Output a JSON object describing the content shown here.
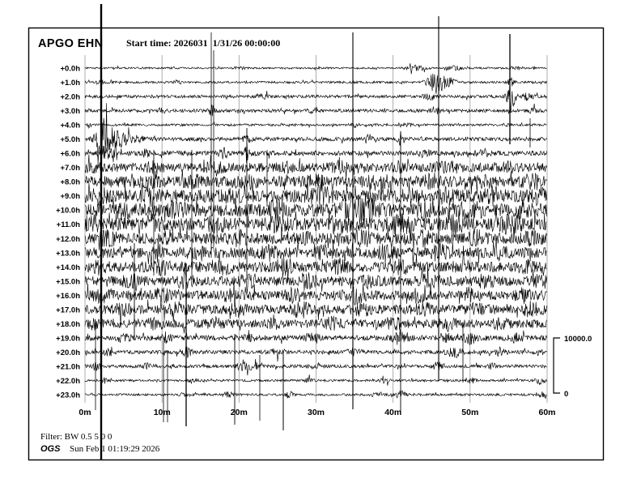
{
  "header": {
    "station": "APGO EHN",
    "start_time": "Start time: 2026031  1/31/26 00:00:00"
  },
  "footer": {
    "filter": "Filter: BW 0.5 5 0 0",
    "org": "OGS",
    "timestamp": "Sun Feb 1 01:19:29 2026"
  },
  "scale_bar": {
    "max_label": "10000.0",
    "min_label": "0"
  },
  "colors": {
    "trace": "#000000",
    "grid": "#9a9a9a",
    "background": "#ffffff"
  },
  "chart_data": {
    "type": "line",
    "title": "APGO EHN helicorder - 24 hourly seismic traces",
    "x_axis": {
      "range_minutes": [
        0,
        60
      ],
      "tick_minutes": [
        0,
        10,
        20,
        30,
        40,
        50,
        60
      ],
      "tick_labels": [
        "0m",
        "10m",
        "20m",
        "30m",
        "40m",
        "50m",
        "60m"
      ],
      "grid": "vertical gray lines every 10 minutes"
    },
    "amplitude_scale": {
      "max": 10000.0,
      "min": 0
    },
    "rows": [
      {
        "label": "+0.0h",
        "noise": 1.1,
        "bursts": [
          [
            20,
            1.5,
            0.7
          ],
          [
            43,
            3,
            1.2
          ],
          [
            48,
            2.5,
            1
          ],
          [
            56,
            2,
            0.8
          ]
        ]
      },
      {
        "label": "+1.0h",
        "noise": 1.4,
        "bursts": [
          [
            2,
            4,
            0.4
          ],
          [
            12,
            2,
            0.5
          ],
          [
            45.7,
            13,
            1.1
          ],
          [
            47.5,
            4,
            0.9
          ],
          [
            55.3,
            5,
            0.4
          ]
        ]
      },
      {
        "label": "+2.0h",
        "noise": 1.9,
        "bursts": [
          [
            23,
            2.5,
            0.8
          ],
          [
            45,
            3,
            1
          ],
          [
            55.3,
            21,
            0.5
          ],
          [
            57.5,
            4,
            0.6
          ]
        ]
      },
      {
        "label": "+3.0h",
        "noise": 2.0,
        "bursts": [
          [
            10,
            2.5,
            0.5
          ],
          [
            16.5,
            7,
            0.4
          ],
          [
            30,
            3,
            0.8
          ],
          [
            45.5,
            4,
            0.6
          ],
          [
            58,
            3,
            0.5
          ]
        ]
      },
      {
        "label": "+4.0h",
        "noise": 1.4,
        "bursts": [
          [
            0.5,
            3,
            0.3
          ],
          [
            35,
            2.5,
            0.5
          ],
          [
            42,
            2,
            0.4
          ],
          [
            55,
            2,
            0.4
          ]
        ]
      },
      {
        "label": "+5.0h",
        "noise": 2.4,
        "bursts": [
          [
            2.1,
            24,
            0.7
          ],
          [
            3.4,
            10,
            1.4
          ],
          [
            5.5,
            5,
            2
          ],
          [
            21,
            3,
            0.6
          ],
          [
            36.8,
            6,
            0.4
          ],
          [
            41,
            5,
            0.4
          ]
        ]
      },
      {
        "label": "+6.0h",
        "noise": 3.0,
        "bursts": [
          [
            2.6,
            8,
            0.6
          ],
          [
            3.9,
            11,
            0.4
          ],
          [
            8,
            6,
            0.4
          ],
          [
            18,
            5,
            0.5
          ],
          [
            21,
            13,
            0.4
          ],
          [
            44,
            4,
            0.8
          ],
          [
            52,
            3,
            1
          ]
        ]
      },
      {
        "label": "+7.0h",
        "noise": 5.5,
        "bursts": [
          [
            1,
            3,
            2
          ],
          [
            9,
            4,
            1
          ],
          [
            17,
            3,
            1.5
          ],
          [
            26,
            3,
            1
          ],
          [
            33,
            4,
            1.2
          ],
          [
            41,
            4,
            1
          ],
          [
            47,
            4,
            1.5
          ],
          [
            55,
            3,
            1
          ]
        ]
      },
      {
        "label": "+8.0h",
        "noise": 7.0,
        "bursts": [
          [
            8.5,
            5,
            1
          ],
          [
            14,
            4,
            1
          ],
          [
            21,
            4,
            1.5
          ],
          [
            30,
            5,
            1
          ],
          [
            38,
            5,
            1.5
          ],
          [
            45,
            5,
            1
          ],
          [
            52,
            4,
            1
          ],
          [
            58,
            5,
            1
          ]
        ]
      },
      {
        "label": "+9.0h",
        "noise": 8.0,
        "bursts": [
          [
            2,
            4,
            1
          ],
          [
            8.5,
            6,
            0.8
          ],
          [
            19,
            4,
            1
          ],
          [
            30.5,
            7,
            1.4
          ],
          [
            40,
            5,
            1
          ],
          [
            47,
            5,
            1.2
          ],
          [
            53,
            5,
            1
          ],
          [
            59,
            5,
            0.8
          ]
        ]
      },
      {
        "label": "+10.0h",
        "noise": 8.0,
        "bursts": [
          [
            5,
            5,
            1
          ],
          [
            12,
            5,
            1
          ],
          [
            25,
            6,
            1.5
          ],
          [
            34.8,
            13,
            1.7
          ],
          [
            36.5,
            9,
            1.4
          ],
          [
            44,
            6,
            1
          ],
          [
            50,
            6,
            1.5
          ],
          [
            57,
            6,
            1
          ]
        ]
      },
      {
        "label": "+11.0h",
        "noise": 8.0,
        "bursts": [
          [
            1,
            6,
            1
          ],
          [
            9,
            6,
            1.2
          ],
          [
            17,
            5,
            1
          ],
          [
            25,
            6,
            1
          ],
          [
            33,
            6,
            1.5
          ],
          [
            41,
            7,
            1.5
          ],
          [
            48,
            6,
            1
          ],
          [
            55,
            6,
            1.5
          ]
        ]
      },
      {
        "label": "+12.0h",
        "noise": 7.0,
        "bursts": [
          [
            3,
            5,
            1
          ],
          [
            11,
            5,
            1
          ],
          [
            20,
            5,
            1
          ],
          [
            28,
            5,
            1
          ],
          [
            36,
            6,
            1.2
          ],
          [
            44,
            5,
            1
          ],
          [
            51,
            5,
            1
          ],
          [
            58,
            5,
            1
          ]
        ]
      },
      {
        "label": "+13.0h",
        "noise": 6.5,
        "bursts": [
          [
            9.3,
            9,
            0.7
          ],
          [
            15,
            5,
            1
          ],
          [
            24,
            5,
            1
          ],
          [
            31,
            5,
            1
          ],
          [
            39,
            6,
            1
          ],
          [
            46,
            6,
            1.2
          ],
          [
            54,
            5,
            1
          ]
        ]
      },
      {
        "label": "+14.0h",
        "noise": 6.5,
        "bursts": [
          [
            2,
            5,
            1
          ],
          [
            10,
            5,
            1
          ],
          [
            18,
            5,
            1
          ],
          [
            26,
            10,
            1.1
          ],
          [
            33,
            6,
            1
          ],
          [
            41,
            5,
            1
          ],
          [
            49,
            5,
            1
          ],
          [
            57,
            5,
            1
          ]
        ]
      },
      {
        "label": "+15.0h",
        "noise": 6.0,
        "bursts": [
          [
            6,
            5,
            1
          ],
          [
            13,
            5,
            1
          ],
          [
            21,
            5,
            1
          ],
          [
            29,
            5,
            1
          ],
          [
            37,
            5,
            1
          ],
          [
            45,
            6,
            1.4
          ],
          [
            52,
            5,
            1
          ],
          [
            59,
            5,
            0.8
          ]
        ]
      },
      {
        "label": "+16.0h",
        "noise": 6.0,
        "bursts": [
          [
            2,
            5,
            1
          ],
          [
            10,
            6,
            1
          ],
          [
            19,
            5,
            1
          ],
          [
            27,
            5,
            1
          ],
          [
            35,
            6,
            1.4
          ],
          [
            43,
            5,
            1
          ],
          [
            50,
            5,
            1
          ],
          [
            57,
            5,
            1
          ]
        ]
      },
      {
        "label": "+17.0h",
        "noise": 5.8,
        "bursts": [
          [
            5,
            5,
            1
          ],
          [
            12,
            5,
            1
          ],
          [
            20,
            5,
            1
          ],
          [
            28,
            6,
            1.2
          ],
          [
            36,
            5,
            1
          ],
          [
            44,
            5,
            1
          ],
          [
            51,
            5,
            1
          ],
          [
            58,
            6,
            1
          ]
        ]
      },
      {
        "label": "+18.0h",
        "noise": 5.2,
        "bursts": [
          [
            1,
            4,
            1
          ],
          [
            9,
            5,
            1
          ],
          [
            17,
            4,
            1
          ],
          [
            24.5,
            7,
            0.6
          ],
          [
            32,
            5,
            1
          ],
          [
            40,
            5,
            1
          ],
          [
            47,
            5,
            1
          ],
          [
            54,
            4,
            1
          ]
        ]
      },
      {
        "label": "+19.0h",
        "noise": 3.2,
        "bursts": [
          [
            5,
            4,
            0.8
          ],
          [
            10.5,
            6,
            0.6
          ],
          [
            21,
            3,
            1
          ],
          [
            29.5,
            5,
            0.8
          ],
          [
            41,
            9,
            0.9
          ],
          [
            47,
            4,
            1
          ],
          [
            50,
            7,
            0.7
          ],
          [
            56,
            4,
            1
          ]
        ]
      },
      {
        "label": "+20.0h",
        "noise": 2.4,
        "bursts": [
          [
            3,
            4,
            0.6
          ],
          [
            13.2,
            7,
            0.5
          ],
          [
            25,
            3,
            1
          ],
          [
            35,
            3,
            1
          ],
          [
            48,
            6,
            1
          ],
          [
            54,
            4,
            0.8
          ],
          [
            59,
            3,
            0.5
          ]
        ]
      },
      {
        "label": "+21.0h",
        "noise": 2.0,
        "bursts": [
          [
            1.5,
            5,
            0.5
          ],
          [
            8,
            3,
            0.6
          ],
          [
            20.5,
            6,
            0.7
          ],
          [
            22,
            4,
            0.6
          ],
          [
            30,
            3,
            0.8
          ],
          [
            46,
            4,
            0.8
          ],
          [
            53,
            3,
            0.6
          ]
        ]
      },
      {
        "label": "+22.0h",
        "noise": 1.4,
        "bursts": [
          [
            2.5,
            3,
            0.5
          ],
          [
            14,
            2.5,
            0.6
          ],
          [
            29,
            2.5,
            0.6
          ],
          [
            39,
            2.5,
            0.6
          ],
          [
            50,
            3,
            0.8
          ],
          [
            59,
            4,
            0.6
          ]
        ]
      },
      {
        "label": "+23.0h",
        "noise": 1.4,
        "bursts": [
          [
            13,
            2,
            0.6
          ],
          [
            18.5,
            3,
            0.8
          ],
          [
            26.5,
            4,
            0.5
          ],
          [
            38,
            2.5,
            0.8
          ],
          [
            41,
            4,
            0.7
          ],
          [
            59.5,
            5,
            0.5
          ]
        ]
      }
    ],
    "spikes": [
      [
        125,
        5,
        568,
        2.4
      ],
      [
        436,
        40,
        505,
        1.1
      ],
      [
        542,
        20,
        470,
        1.1
      ],
      [
        630,
        42,
        178,
        1.3
      ],
      [
        230,
        325,
        526,
        1.3
      ],
      [
        202,
        420,
        521,
        0.8
      ],
      [
        207,
        432,
        521,
        0.8
      ],
      [
        290,
        412,
        524,
        0.9
      ],
      [
        321,
        438,
        519,
        0.8
      ],
      [
        350,
        436,
        531,
        1.0
      ],
      [
        495,
        162,
        511,
        0.9
      ],
      [
        261,
        40,
        318,
        0.8
      ],
      [
        264,
        62,
        305,
        0.8
      ],
      [
        655,
        146,
        182,
        0.8
      ],
      [
        305,
        158,
        345,
        0.9
      ],
      [
        118,
        398,
        506,
        0.8
      ],
      [
        572,
        400,
        472,
        0.8
      ],
      [
        166,
        300,
        420,
        0.9
      ],
      [
        190,
        185,
        340,
        0.8
      ],
      [
        237,
        185,
        345,
        0.8
      ],
      [
        330,
        185,
        255,
        0.8
      ]
    ]
  }
}
